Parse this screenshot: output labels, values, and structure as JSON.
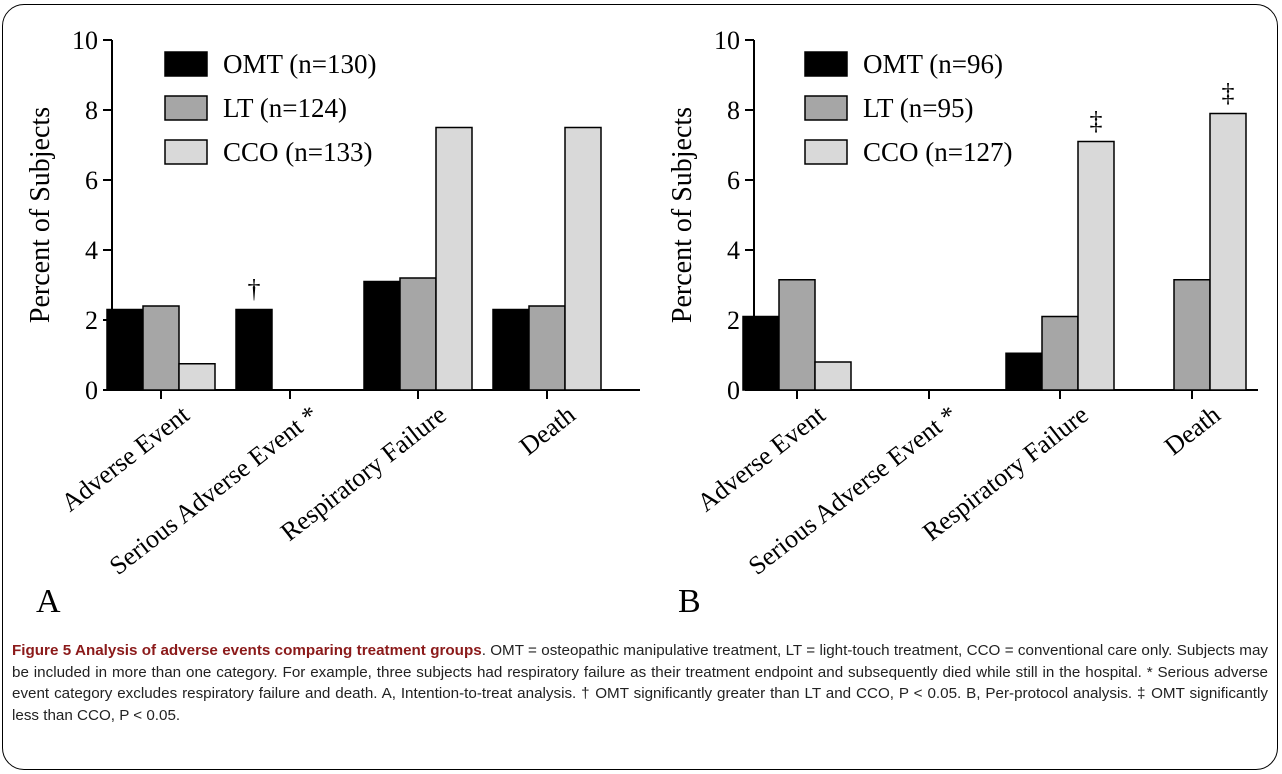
{
  "chart_data": [
    {
      "type": "bar",
      "panel_label": "A",
      "ylabel": "Percent of Subjects",
      "ylim": [
        0,
        10
      ],
      "yticks": [
        "0",
        "2",
        "4",
        "6",
        "8",
        "10"
      ],
      "categories": [
        "Adverse Event",
        "Serious Adverse Event *",
        "Respiratory Failure",
        "Death"
      ],
      "series": [
        {
          "name": "OMT (n=130)",
          "color": "#000000",
          "values": [
            2.3,
            2.3,
            3.1,
            2.3
          ]
        },
        {
          "name": "LT (n=124)",
          "color": "#a6a6a6",
          "values": [
            2.4,
            0,
            3.2,
            2.4
          ]
        },
        {
          "name": "CCO (n=133)",
          "color": "#d9d9d9",
          "values": [
            0.75,
            0,
            7.5,
            7.5
          ]
        }
      ],
      "annotations": [
        {
          "text": "†",
          "category_index": 1,
          "series_index": 0
        }
      ],
      "legend": "top-left"
    },
    {
      "type": "bar",
      "panel_label": "B",
      "ylabel": "Percent of Subjects",
      "ylim": [
        0,
        10
      ],
      "yticks": [
        "0",
        "2",
        "4",
        "6",
        "8",
        "10"
      ],
      "categories": [
        "Adverse Event",
        "Serious Adverse Event *",
        "Respiratory Failure",
        "Death"
      ],
      "series": [
        {
          "name": "OMT (n=96)",
          "color": "#000000",
          "values": [
            2.1,
            0,
            1.05,
            0
          ]
        },
        {
          "name": "LT (n=95)",
          "color": "#a6a6a6",
          "values": [
            3.15,
            0,
            2.1,
            3.15
          ]
        },
        {
          "name": "CCO (n=127)",
          "color": "#d9d9d9",
          "values": [
            0.8,
            0,
            7.1,
            7.9
          ]
        }
      ],
      "annotations": [
        {
          "text": "‡",
          "category_index": 2,
          "series_index": 2
        },
        {
          "text": "‡",
          "category_index": 3,
          "series_index": 2
        }
      ],
      "legend": "top-left"
    }
  ],
  "caption": {
    "title": "Figure 5 Analysis of adverse events comparing treatment groups",
    "body": ". OMT = osteopathic manipulative treatment, LT = light-touch treatment, CCO = conventional care only. Subjects may be included in more than one category. For example, three subjects had respiratory failure as their treatment endpoint and subsequently died while still in the hospital. * Serious adverse event category excludes respiratory failure and death. A, Intention-to-treat analysis. † OMT significantly greater than LT and CCO, P < 0.05. B, Per-protocol analysis. ‡ OMT significantly less than CCO, P < 0.05."
  }
}
